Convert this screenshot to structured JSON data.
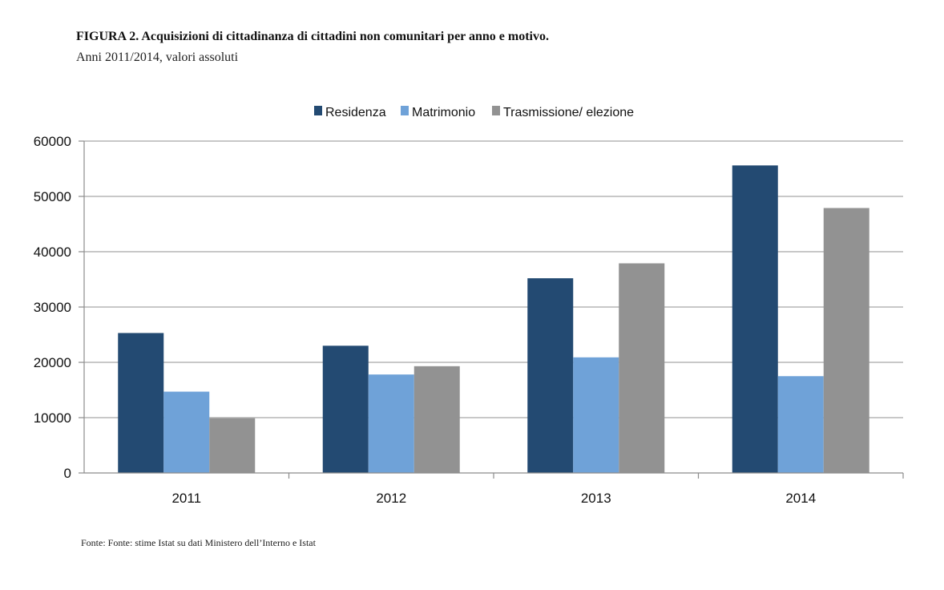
{
  "figure": {
    "title": "FIGURA 2. Acquisizioni di cittadinanza di cittadini non comunitari per anno e motivo.",
    "subtitle": "Anni 2011/2014, valori assoluti",
    "source": "Fonte: Fonte: stime Istat su dati Ministero dell’Interno e Istat"
  },
  "chart_data": {
    "type": "bar",
    "categories": [
      "2011",
      "2012",
      "2013",
      "2014"
    ],
    "series": [
      {
        "name": "Residenza",
        "color": "#234a72",
        "values": [
          25300,
          23000,
          35200,
          55600
        ]
      },
      {
        "name": "Matrimonio",
        "color": "#6fa2d8",
        "values": [
          14700,
          17800,
          20900,
          17500
        ]
      },
      {
        "name": "Trasmissione/ elezione",
        "color": "#929292",
        "values": [
          9900,
          19300,
          37900,
          47900
        ]
      }
    ],
    "ylim": [
      0,
      60000
    ],
    "yticks": [
      "0",
      "10000",
      "20000",
      "30000",
      "40000",
      "50000",
      "60000"
    ],
    "grid": true,
    "legend_position": "top-center"
  }
}
